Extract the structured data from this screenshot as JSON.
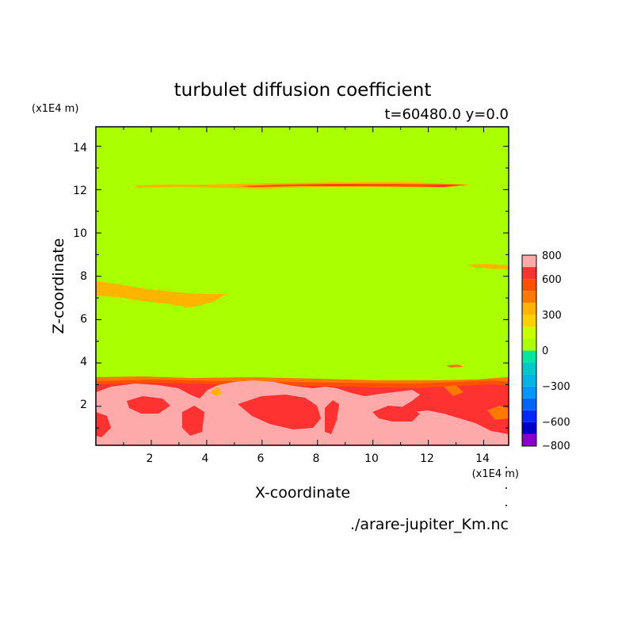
{
  "chart_data": {
    "type": "contour",
    "title": "turbulet diffusion coefficient",
    "subtitle": "t=60480.0 y=0.0",
    "xlabel": "X-coordinate",
    "ylabel": "Z-coordinate",
    "x_unit": "(x1E4 m)",
    "y_unit": "(x1E4 m)",
    "xlim": [
      0,
      14.9
    ],
    "ylim": [
      0.2,
      14.9
    ],
    "xticks": [
      "2",
      "4",
      "6",
      "8",
      "10",
      "12",
      "14"
    ],
    "yticks": [
      "2",
      "4",
      "6",
      "8",
      "10",
      "12",
      "14"
    ],
    "colorbar": {
      "levels": [
        -800,
        -700,
        -600,
        -500,
        -400,
        -300,
        -200,
        -100,
        0,
        100,
        200,
        300,
        400,
        500,
        600,
        700,
        800
      ],
      "colors": [
        "#8a00c8",
        "#0000c8",
        "#0028ff",
        "#0064ff",
        "#0096ff",
        "#00b4e6",
        "#00c8c8",
        "#00e6a0",
        "#aaff00",
        "#c8ff00",
        "#ffd000",
        "#ffb400",
        "#ff7800",
        "#ff5000",
        "#ff3232",
        "#ffaaaa"
      ],
      "labels": [
        "800",
        "600",
        "300",
        "0",
        "−300",
        "−600",
        "−800"
      ]
    },
    "background_value": 0,
    "features": [
      {
        "region": "z < 3.2 (boundary layer)",
        "value_range": [
          400,
          800
        ]
      },
      {
        "region": "thin layer near z=12.2",
        "value_range": [
          200,
          700
        ]
      },
      {
        "region": "layer near z=7, x 0-4.7",
        "value_range": [
          200,
          300
        ]
      }
    ],
    "source": "./arare-jupiter_Km.nc"
  },
  "colors": {
    "background_field": "#aaff00"
  }
}
